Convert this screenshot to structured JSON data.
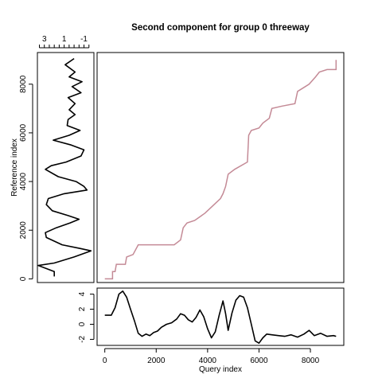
{
  "chart_data": {
    "type": "line",
    "title": "Second component for group 0  threeway",
    "panels": {
      "left": {
        "ylabel": "Reference index",
        "yticks": [
          0,
          2000,
          4000,
          6000,
          8000
        ],
        "ylim": [
          -150,
          9300
        ],
        "top_ticks": [
          3,
          1,
          -1
        ],
        "xlim": [
          3.7,
          -2.0
        ],
        "series": [
          {
            "color": "#000000",
            "ref": [
              100,
              300,
              550,
              650,
              900,
              1150,
              1250,
              1400,
              1700,
              1900,
              2100,
              2300,
              2450,
              2600,
              2800,
              3050,
              3300,
              3500,
              3650,
              3800,
              4000,
              4200,
              4500,
              4650,
              4800,
              5050,
              5300,
              5500,
              5700,
              5900,
              6100,
              6300,
              6550,
              6750,
              6950,
              7200,
              7450,
              7650,
              7900,
              8100,
              8300,
              8500,
              8800,
              9050
            ],
            "value": [
              2.0,
              2.0,
              3.6,
              2.0,
              0.0,
              -1.7,
              -0.6,
              1.2,
              2.8,
              2.9,
              1.8,
              0.4,
              -0.5,
              0.6,
              2.2,
              2.8,
              2.6,
              1.0,
              -1.3,
              -1.0,
              -0.2,
              1.6,
              2.9,
              2.3,
              0.8,
              -0.7,
              -1.0,
              0.3,
              2.1,
              0.5,
              -0.6,
              0.7,
              0.6,
              -0.1,
              0.5,
              -0.1,
              0.6,
              -0.7,
              0.2,
              -0.8,
              0.5,
              -0.1,
              0.9,
              0.0
            ]
          }
        ]
      },
      "main": {
        "xlim": [
          -300,
          9300
        ],
        "ylim": [
          -150,
          9300
        ],
        "series": [
          {
            "color": "#c48a96",
            "steps": [
              [
                0,
                0
              ],
              [
                300,
                0
              ],
              [
                300,
                300
              ],
              [
                400,
                300
              ],
              [
                450,
                600
              ],
              [
                800,
                600
              ],
              [
                850,
                900
              ],
              [
                1100,
                1000
              ],
              [
                1300,
                1400
              ],
              [
                2700,
                1400
              ],
              [
                2950,
                1600
              ],
              [
                3050,
                2100
              ],
              [
                3200,
                2300
              ],
              [
                3500,
                2400
              ],
              [
                3900,
                2700
              ],
              [
                4200,
                3000
              ],
              [
                4500,
                3300
              ],
              [
                4600,
                3500
              ],
              [
                4700,
                3800
              ],
              [
                4800,
                4300
              ],
              [
                5050,
                4500
              ],
              [
                5550,
                4800
              ],
              [
                5600,
                5900
              ],
              [
                5700,
                6100
              ],
              [
                6000,
                6200
              ],
              [
                6150,
                6400
              ],
              [
                6400,
                6600
              ],
              [
                6500,
                7000
              ],
              [
                6900,
                7100
              ],
              [
                7400,
                7200
              ],
              [
                7500,
                7700
              ],
              [
                7950,
                8000
              ],
              [
                8200,
                8300
              ],
              [
                8350,
                8500
              ],
              [
                8650,
                8600
              ],
              [
                9000,
                8600
              ],
              [
                9000,
                9000
              ]
            ]
          }
        ]
      },
      "bottom": {
        "xlabel": "Query index",
        "xticks": [
          0,
          2000,
          4000,
          6000,
          8000
        ],
        "yticks": [
          -2,
          0,
          2,
          4
        ],
        "xlim": [
          -300,
          9300
        ],
        "ylim": [
          -2.8,
          4.8
        ],
        "series": [
          {
            "color": "#000000",
            "x": [
              0,
              250,
              400,
              550,
              700,
              850,
              1000,
              1150,
              1300,
              1450,
              1600,
              1750,
              1900,
              2050,
              2200,
              2400,
              2600,
              2800,
              2950,
              3100,
              3250,
              3400,
              3550,
              3700,
              3850,
              4000,
              4150,
              4300,
              4450,
              4600,
              4700,
              4800,
              4950,
              5100,
              5250,
              5400,
              5550,
              5700,
              5850,
              6000,
              6150,
              6300,
              6500,
              6750,
              7000,
              7250,
              7500,
              7750,
              7950,
              8150,
              8400,
              8650,
              8900,
              9000
            ],
            "y": [
              1.2,
              1.2,
              2.2,
              4.0,
              4.4,
              3.6,
              2.0,
              0.5,
              -1.2,
              -1.6,
              -1.3,
              -1.5,
              -1.1,
              -0.9,
              -0.4,
              0.0,
              0.2,
              0.7,
              1.4,
              1.2,
              0.6,
              0.3,
              0.9,
              1.9,
              1.0,
              -0.6,
              -1.8,
              -1.0,
              1.2,
              3.1,
              1.4,
              -0.8,
              1.5,
              3.2,
              3.8,
              3.6,
              2.2,
              0.0,
              -2.2,
              -2.5,
              -1.8,
              -1.3,
              -1.4,
              -1.5,
              -1.6,
              -1.4,
              -1.7,
              -1.3,
              -0.8,
              -1.5,
              -1.2,
              -1.6,
              -1.5,
              -1.6
            ]
          }
        ]
      }
    }
  }
}
